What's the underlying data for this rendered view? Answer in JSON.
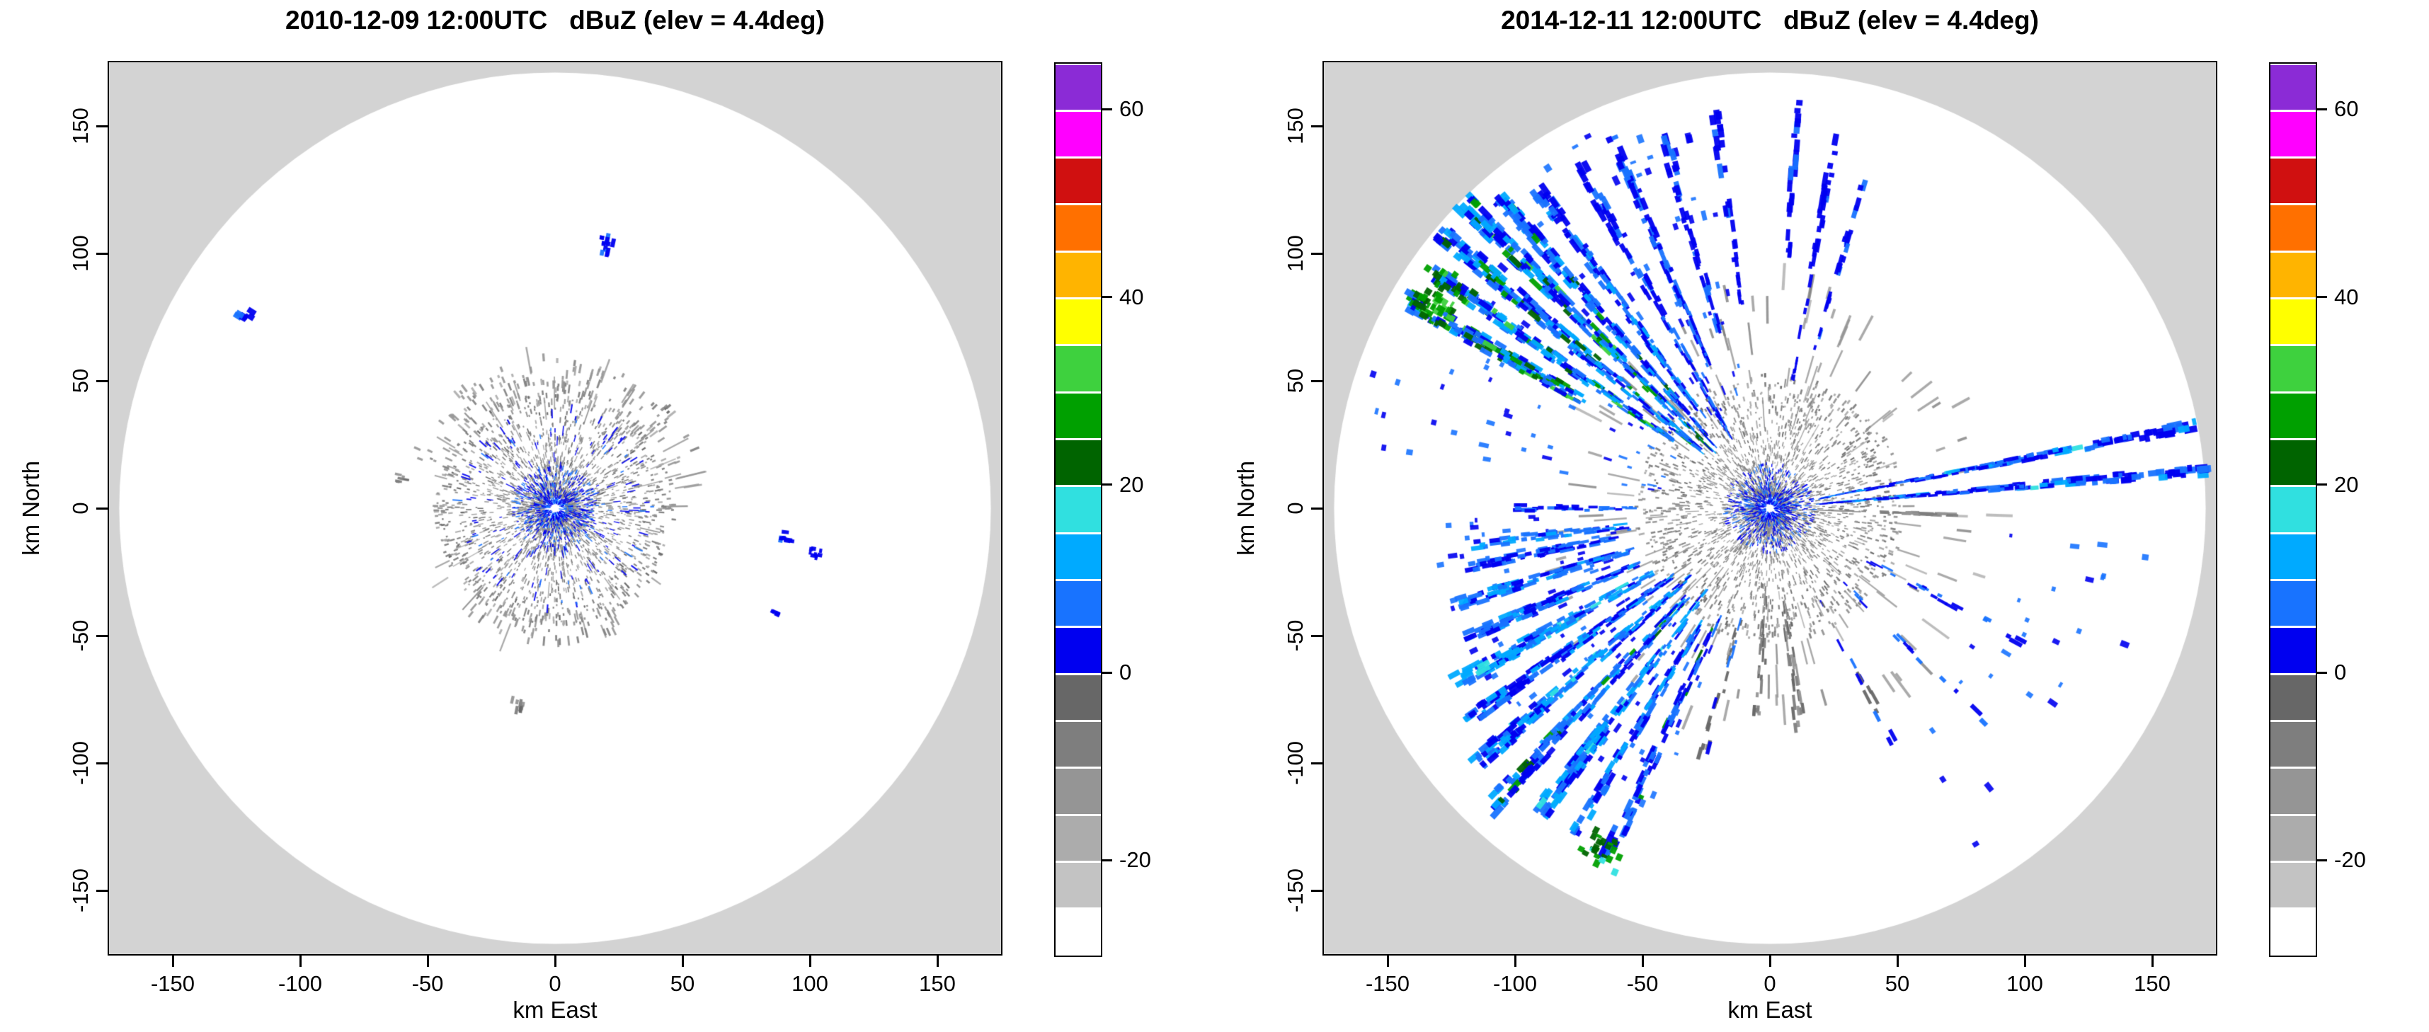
{
  "style": {
    "plot_outside_color": "#d3d3d3",
    "radar_disc_color": "#ffffff",
    "axis_color": "#000000"
  },
  "colorbar": {
    "min": -30,
    "max": 65,
    "step": 5,
    "ticks": [
      60,
      40,
      20,
      0,
      -20
    ],
    "colors_bottom_to_top": [
      "#ffffff",
      "#c3c3c3",
      "#acacac",
      "#959595",
      "#7e7e7e",
      "#676767",
      "#0000f0",
      "#1873ff",
      "#00aaff",
      "#30e0e0",
      "#006400",
      "#00a000",
      "#3ed13e",
      "#ffff00",
      "#ffb400",
      "#ff7000",
      "#d01010",
      "#ff00ff",
      "#8b2bd6"
    ]
  },
  "chart_data": [
    {
      "type": "heatmap",
      "title": "2010-12-09 12:00UTC   dBuZ (elev = 4.4deg)",
      "datetime_utc": "2010-12-09 12:00UTC",
      "field": "dBuZ",
      "elevation_deg": 4.4,
      "xlabel": "km East",
      "ylabel": "km North",
      "xlim": [
        -175,
        175
      ],
      "ylim": [
        -175,
        175
      ],
      "xticks": [
        -150,
        -100,
        -50,
        0,
        50,
        100,
        150
      ],
      "yticks": [
        -150,
        -100,
        -50,
        0,
        50,
        100,
        150
      ],
      "radar_range_km": 171,
      "grid": false,
      "seed": 1209,
      "echoes": {
        "ground_clutter": {
          "r_min": 4,
          "r_max": 46,
          "count": 3000,
          "v": [
            -18,
            -4
          ]
        },
        "core": {
          "r_max": 16,
          "count": 700,
          "v": [
            0,
            8
          ]
        },
        "gray_rays": {
          "count": 45,
          "r_min": 28,
          "r_max": 62
        },
        "fields": [
          {
            "az0": 0,
            "az1": 360,
            "r0": 14,
            "r1": 38,
            "n": 170,
            "v": [
              0,
              6
            ]
          },
          {
            "az0": 290,
            "az1": 380,
            "r0": 40,
            "r1": 58,
            "n": 110,
            "v": [
              -16,
              -8
            ]
          },
          {
            "az0": 150,
            "az1": 230,
            "r0": 40,
            "r1": 52,
            "n": 60,
            "v": [
              -16,
              -8
            ]
          },
          {
            "az0": 20,
            "az1": 70,
            "r0": 42,
            "r1": 58,
            "n": 40,
            "v": [
              -16,
              -8
            ]
          }
        ],
        "spokes": [],
        "patches": [
          {
            "az": 11,
            "r": 104,
            "dr": 7,
            "da": 1.5,
            "n": 14,
            "v": [
              0,
              6
            ]
          },
          {
            "az": 302,
            "r": 141,
            "dr": 6,
            "da": 1.2,
            "n": 8,
            "v": [
              0,
              6
            ]
          },
          {
            "az": 97,
            "r": 91,
            "dr": 5,
            "da": 1.5,
            "n": 10,
            "v": [
              0,
              6
            ]
          },
          {
            "az": 100,
            "r": 103,
            "dr": 5,
            "da": 1.2,
            "n": 8,
            "v": [
              0,
              6
            ]
          },
          {
            "az": 116,
            "r": 95,
            "dr": 3,
            "da": 1.0,
            "n": 5,
            "v": [
              0,
              4
            ]
          },
          {
            "az": 191,
            "r": 77,
            "dr": 4,
            "da": 2.0,
            "n": 8,
            "v": [
              -12,
              -4
            ]
          },
          {
            "az": 49,
            "r": 58,
            "dr": 4,
            "da": 2.0,
            "n": 6,
            "v": [
              -12,
              -4
            ]
          },
          {
            "az": 281,
            "r": 60,
            "dr": 4,
            "da": 1.5,
            "n": 6,
            "v": [
              -12,
              -4
            ]
          }
        ]
      }
    },
    {
      "type": "heatmap",
      "title": "2014-12-11 12:00UTC   dBuZ (elev = 4.4deg)",
      "datetime_utc": "2014-12-11 12:00UTC",
      "field": "dBuZ",
      "elevation_deg": 4.4,
      "xlabel": "km East",
      "ylabel": "km North",
      "xlim": [
        -175,
        175
      ],
      "ylim": [
        -175,
        175
      ],
      "xticks": [
        -150,
        -100,
        -50,
        0,
        50,
        100,
        150
      ],
      "yticks": [
        -150,
        -100,
        -50,
        0,
        50,
        100,
        150
      ],
      "radar_range_km": 171,
      "grid": false,
      "seed": 1411,
      "echoes": {
        "ground_clutter": {
          "r_min": 4,
          "r_max": 52,
          "count": 3400,
          "v": [
            -18,
            -4
          ]
        },
        "core": {
          "r_max": 17,
          "count": 800,
          "v": [
            0,
            8
          ]
        },
        "gray_rays": {
          "count": 160,
          "r_min": 25,
          "r_max": 95
        },
        "fields": [
          {
            "az0": 278,
            "az1": 350,
            "r0": 40,
            "r1": 165,
            "n": 130,
            "v": [
              0,
              10
            ]
          },
          {
            "az0": 200,
            "az1": 268,
            "r0": 55,
            "r1": 130,
            "n": 120,
            "v": [
              0,
              10
            ]
          },
          {
            "az0": 95,
            "az1": 150,
            "r0": 90,
            "r1": 160,
            "n": 25,
            "v": [
              2,
              10
            ]
          }
        ],
        "spokes": [
          {
            "az": 300,
            "spread": 2.5,
            "r0": 80,
            "r1": 162,
            "n": 140,
            "v": [
              2,
              14
            ],
            "v2": {
              "range": [
                20,
                32
              ],
              "p": 0.3
            }
          },
          {
            "az": 305,
            "spread": 2.0,
            "r0": 45,
            "r1": 165,
            "n": 150,
            "v": [
              2,
              14
            ],
            "v2": {
              "range": [
                20,
                32
              ],
              "p": 0.22
            }
          },
          {
            "az": 310,
            "spread": 2.5,
            "r0": 32,
            "r1": 168,
            "n": 200,
            "v": [
              0,
              14
            ],
            "v2": {
              "range": [
                20,
                32
              ],
              "p": 0.15
            }
          },
          {
            "az": 315,
            "spread": 2.5,
            "r0": 30,
            "r1": 168,
            "n": 220,
            "v": [
              0,
              14
            ],
            "v2": {
              "range": [
                20,
                32
              ],
              "p": 0.2
            }
          },
          {
            "az": 319,
            "spread": 2.0,
            "r0": 28,
            "r1": 160,
            "n": 160,
            "v": [
              0,
              12
            ],
            "v2": {
              "range": [
                20,
                30
              ],
              "p": 0.08
            }
          },
          {
            "az": 324,
            "spread": 2.0,
            "r0": 40,
            "r1": 152,
            "n": 110,
            "v": [
              0,
              12
            ]
          },
          {
            "az": 331,
            "spread": 2.0,
            "r0": 30,
            "r1": 150,
            "n": 90,
            "v": [
              0,
              10
            ]
          },
          {
            "az": 337,
            "spread": 1.5,
            "r0": 55,
            "r1": 158,
            "n": 70,
            "v": [
              0,
              8
            ]
          },
          {
            "az": 344,
            "spread": 1.5,
            "r0": 70,
            "r1": 150,
            "n": 45,
            "v": [
              0,
              8
            ]
          },
          {
            "az": 352,
            "spread": 1.2,
            "r0": 80,
            "r1": 155,
            "n": 30,
            "v": [
              0,
              6
            ]
          },
          {
            "az": 4,
            "spread": 1.0,
            "r0": 90,
            "r1": 160,
            "n": 25,
            "v": [
              0,
              6
            ]
          },
          {
            "az": 10,
            "spread": 1.0,
            "r0": 50,
            "r1": 150,
            "n": 35,
            "v": [
              0,
              6
            ]
          },
          {
            "az": 16,
            "spread": 1.0,
            "r0": 60,
            "r1": 145,
            "n": 22,
            "v": [
              0,
              6
            ]
          },
          {
            "az": 79,
            "spread": 1.2,
            "r0": 18,
            "r1": 170,
            "n": 150,
            "v": [
              0,
              10
            ],
            "v2": {
              "range": [
                10,
                16
              ],
              "p": 0.2
            }
          },
          {
            "az": 85,
            "spread": 1.2,
            "r0": 18,
            "r1": 170,
            "n": 150,
            "v": [
              0,
              10
            ],
            "v2": {
              "range": [
                10,
                16
              ],
              "p": 0.2
            }
          },
          {
            "az": 92,
            "spread": 1.0,
            "r0": 15,
            "r1": 70,
            "n": 40,
            "v": [
              -14,
              -6
            ]
          },
          {
            "az": 263,
            "spread": 2.0,
            "r0": 55,
            "r1": 115,
            "n": 45,
            "v": [
              2,
              12
            ]
          },
          {
            "az": 270,
            "spread": 1.5,
            "r0": 50,
            "r1": 100,
            "n": 30,
            "v": [
              0,
              10
            ]
          },
          {
            "az": 205,
            "spread": 2.0,
            "r0": 45,
            "r1": 150,
            "n": 80,
            "v": [
              0,
              10
            ],
            "v2": {
              "range": [
                20,
                28
              ],
              "p": 0.08
            }
          },
          {
            "az": 211,
            "spread": 2.0,
            "r0": 50,
            "r1": 148,
            "n": 90,
            "v": [
              0,
              12
            ]
          },
          {
            "az": 217,
            "spread": 2.5,
            "r0": 40,
            "r1": 152,
            "n": 140,
            "v": [
              0,
              12
            ],
            "v2": {
              "range": [
                10,
                16
              ],
              "p": 0.25
            }
          },
          {
            "az": 223,
            "spread": 2.5,
            "r0": 45,
            "r1": 158,
            "n": 150,
            "v": [
              0,
              12
            ],
            "v2": {
              "range": [
                20,
                30
              ],
              "p": 0.1
            }
          },
          {
            "az": 229,
            "spread": 2.5,
            "r0": 40,
            "r1": 150,
            "n": 150,
            "v": [
              0,
              12
            ],
            "v2": {
              "range": [
                10,
                16
              ],
              "p": 0.3
            }
          },
          {
            "az": 235,
            "spread": 2.0,
            "r0": 45,
            "r1": 142,
            "n": 120,
            "v": [
              0,
              12
            ]
          },
          {
            "az": 241,
            "spread": 2.5,
            "r0": 50,
            "r1": 138,
            "n": 130,
            "v": [
              2,
              14
            ],
            "v2": {
              "range": [
                10,
                16
              ],
              "p": 0.3
            }
          },
          {
            "az": 247,
            "spread": 2.0,
            "r0": 55,
            "r1": 130,
            "n": 100,
            "v": [
              0,
              12
            ]
          },
          {
            "az": 253,
            "spread": 2.0,
            "r0": 55,
            "r1": 125,
            "n": 80,
            "v": [
              2,
              12
            ]
          },
          {
            "az": 259,
            "spread": 2.0,
            "r0": 60,
            "r1": 118,
            "n": 60,
            "v": [
              0,
              10
            ]
          },
          {
            "az": 172,
            "spread": 3.0,
            "r0": 30,
            "r1": 85,
            "n": 30,
            "v": [
              -12,
              0
            ]
          },
          {
            "az": 183,
            "spread": 3.0,
            "r0": 30,
            "r1": 80,
            "n": 25,
            "v": [
              -12,
              0
            ]
          },
          {
            "az": 195,
            "spread": 2.0,
            "r0": 40,
            "r1": 100,
            "n": 25,
            "v": [
              -6,
              6
            ]
          },
          {
            "az": 118,
            "spread": 2.0,
            "r0": 40,
            "r1": 110,
            "n": 18,
            "v": [
              0,
              8
            ]
          },
          {
            "az": 135,
            "spread": 2.0,
            "r0": 40,
            "r1": 120,
            "n": 15,
            "v": [
              0,
              8
            ]
          },
          {
            "az": 152,
            "spread": 2.0,
            "r0": 40,
            "r1": 110,
            "n": 15,
            "v": [
              -4,
              6
            ]
          }
        ],
        "patches": [
          {
            "az": 206,
            "r": 148,
            "dr": 12,
            "da": 3,
            "n": 25,
            "v": [
              18,
              28
            ]
          },
          {
            "az": 303,
            "r": 150,
            "dr": 16,
            "da": 4,
            "n": 40,
            "v": [
              20,
              32
            ]
          }
        ]
      }
    }
  ]
}
